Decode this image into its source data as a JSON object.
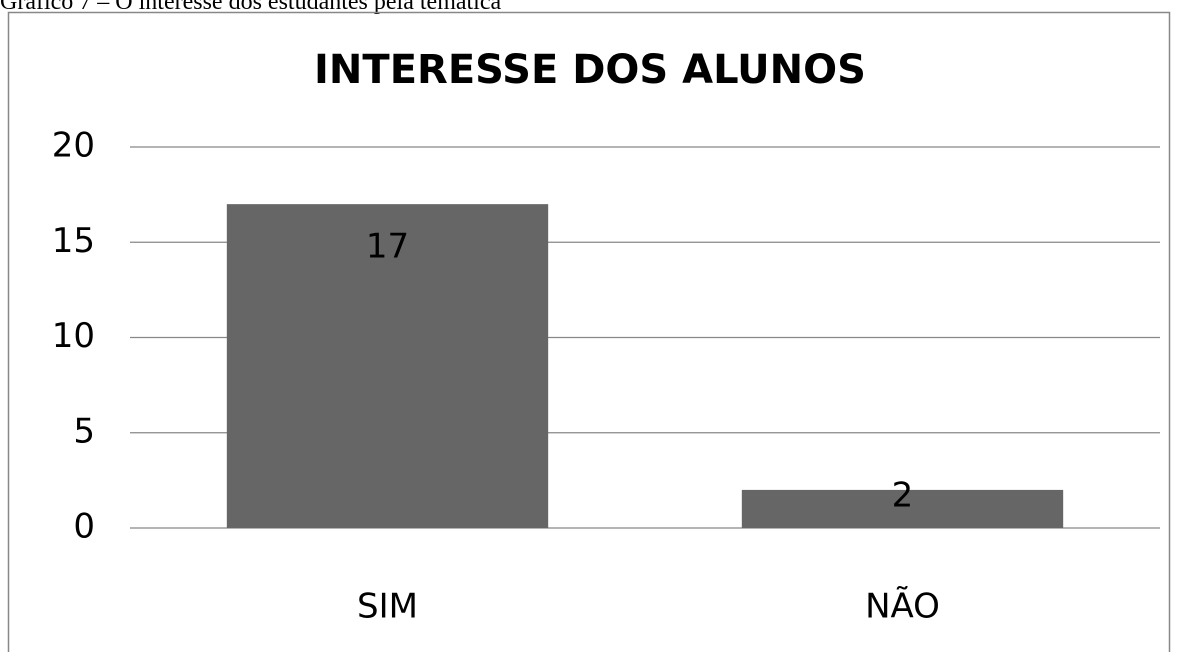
{
  "chart_data": {
    "type": "bar",
    "caption": "Gráfico 7 – O interesse dos estudantes pela temática",
    "title": "INTERESSE DOS ALUNOS",
    "categories": [
      "SIM",
      "NÃO"
    ],
    "values": [
      17,
      2
    ],
    "color": "#666666",
    "ylim": [
      0,
      20
    ],
    "yticks": [
      0,
      5,
      10,
      15,
      20
    ],
    "grid": true
  }
}
